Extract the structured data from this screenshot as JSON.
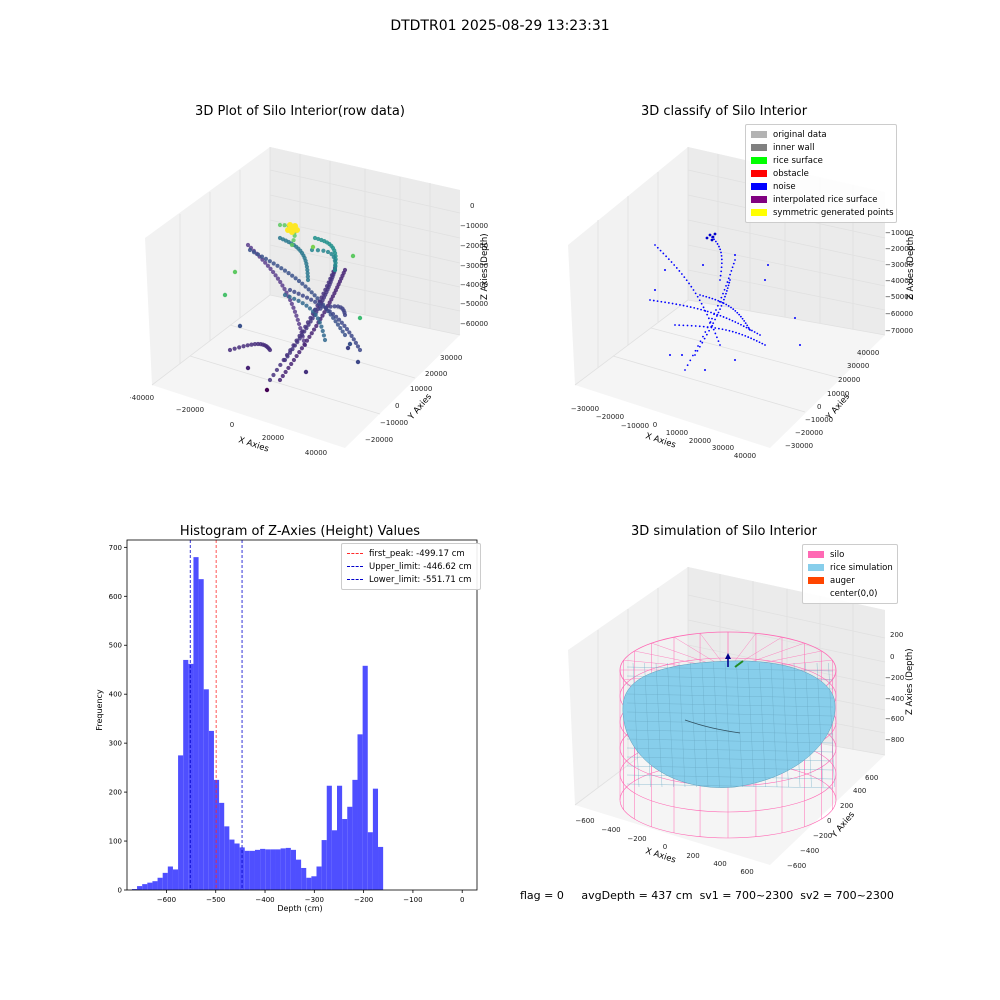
{
  "figure": {
    "title": "DTDTR01 2025-08-29 13:23:31",
    "footer": {
      "flag": "flag = 0",
      "avg": "avgDepth = 437 cm",
      "sv1": "sv1 = 700~2300",
      "sv2": "sv2 = 700~2300"
    }
  },
  "chart_data": [
    {
      "type": "scatter",
      "title": "3D Plot of Silo Interior(row data)",
      "xlabel": "X Axies",
      "ylabel": "Y Axies",
      "zlabel": "Z Axies (Depth)",
      "x_ticks": [
        "−40000",
        "−20000",
        "0",
        "20000",
        "40000"
      ],
      "y_ticks": [
        "−20000",
        "−10000",
        "0",
        "10000",
        "20000",
        "30000"
      ],
      "z_ticks": [
        "0",
        "−10000",
        "−20000",
        "−30000",
        "−40000",
        "−50000",
        "−60000"
      ],
      "colormap": "viridis",
      "grid": true
    },
    {
      "type": "scatter",
      "title": "3D classify of Silo Interior",
      "xlabel": "X Axies",
      "ylabel": "Y Axies",
      "zlabel": "Z Axies (Depth)",
      "x_ticks": [
        "−30000",
        "−20000",
        "−10000",
        "0",
        "10000",
        "20000",
        "30000",
        "40000"
      ],
      "y_ticks": [
        "−30000",
        "−20000",
        "−10000",
        "0",
        "10000",
        "20000",
        "30000",
        "40000"
      ],
      "z_ticks": [
        "−10000",
        "−20000",
        "−30000",
        "−40000",
        "−50000",
        "−60000",
        "−70000"
      ],
      "legend_position": "top-right",
      "legend": [
        {
          "name": "original data",
          "color": "#b3b3b3"
        },
        {
          "name": "inner wall",
          "color": "#808080"
        },
        {
          "name": "rice surface",
          "color": "#00ff00"
        },
        {
          "name": "obstacle",
          "color": "#ff0000"
        },
        {
          "name": "noise",
          "color": "#0000ff"
        },
        {
          "name": "interpolated rice surface",
          "color": "#800080"
        },
        {
          "name": "symmetric generated points",
          "color": "#ffff00"
        }
      ],
      "grid": true
    },
    {
      "type": "bar",
      "title": "Histogram of Z-Axies (Height) Values",
      "xlabel": "Depth (cm)",
      "ylabel": "Frequency",
      "xlim": [
        -680,
        30
      ],
      "ylim": [
        0,
        715
      ],
      "x_ticks": [
        -600,
        -500,
        -400,
        -300,
        -200,
        -100,
        0
      ],
      "x_tick_labels": [
        "−600",
        "−500",
        "−400",
        "−300",
        "−200",
        "−100",
        "0"
      ],
      "y_ticks": [
        0,
        100,
        200,
        300,
        400,
        500,
        600,
        700
      ],
      "bin_start": -670,
      "bin_width": 10.4,
      "values": [
        2,
        8,
        12,
        15,
        18,
        25,
        35,
        48,
        42,
        275,
        470,
        462,
        680,
        635,
        410,
        325,
        225,
        178,
        130,
        103,
        95,
        87,
        80,
        80,
        82,
        84,
        83,
        83,
        83,
        85,
        86,
        82,
        62,
        45,
        25,
        28,
        48,
        102,
        213,
        122,
        213,
        145,
        170,
        225,
        318,
        458,
        118,
        207,
        88
      ],
      "bar_color": "#4b4bff",
      "lines": [
        {
          "name": "first_peak: -499.17 cm",
          "x": -499.17,
          "color": "#ff2a2a"
        },
        {
          "name": "Upper_limit: -446.62 cm",
          "x": -446.62,
          "color": "#0000cc"
        },
        {
          "name": "Lower_limit: -551.71 cm",
          "x": -551.71,
          "color": "#0000cc"
        }
      ],
      "legend_position": "top-right"
    },
    {
      "type": "other",
      "title": "3D simulation of Silo Interior",
      "xlabel": "X Axies",
      "ylabel": "Y Axies",
      "zlabel": "Z Axies (Depth)",
      "x_ticks": [
        "−600",
        "−400",
        "−200",
        "0",
        "200",
        "400",
        "600"
      ],
      "y_ticks": [
        "−600",
        "−400",
        "−200",
        "0",
        "200",
        "400",
        "600"
      ],
      "z_ticks": [
        "200",
        "0",
        "−200",
        "−400",
        "−600",
        "−800"
      ],
      "legend_position": "top-right",
      "legend": [
        {
          "name": "silo",
          "color": "#ff69b4"
        },
        {
          "name": "rice simulation",
          "color": "#87ceeb"
        },
        {
          "name": "auger",
          "color": "#ff4500"
        },
        {
          "name": "center(0,0)",
          "color": ""
        }
      ],
      "grid": true
    }
  ]
}
